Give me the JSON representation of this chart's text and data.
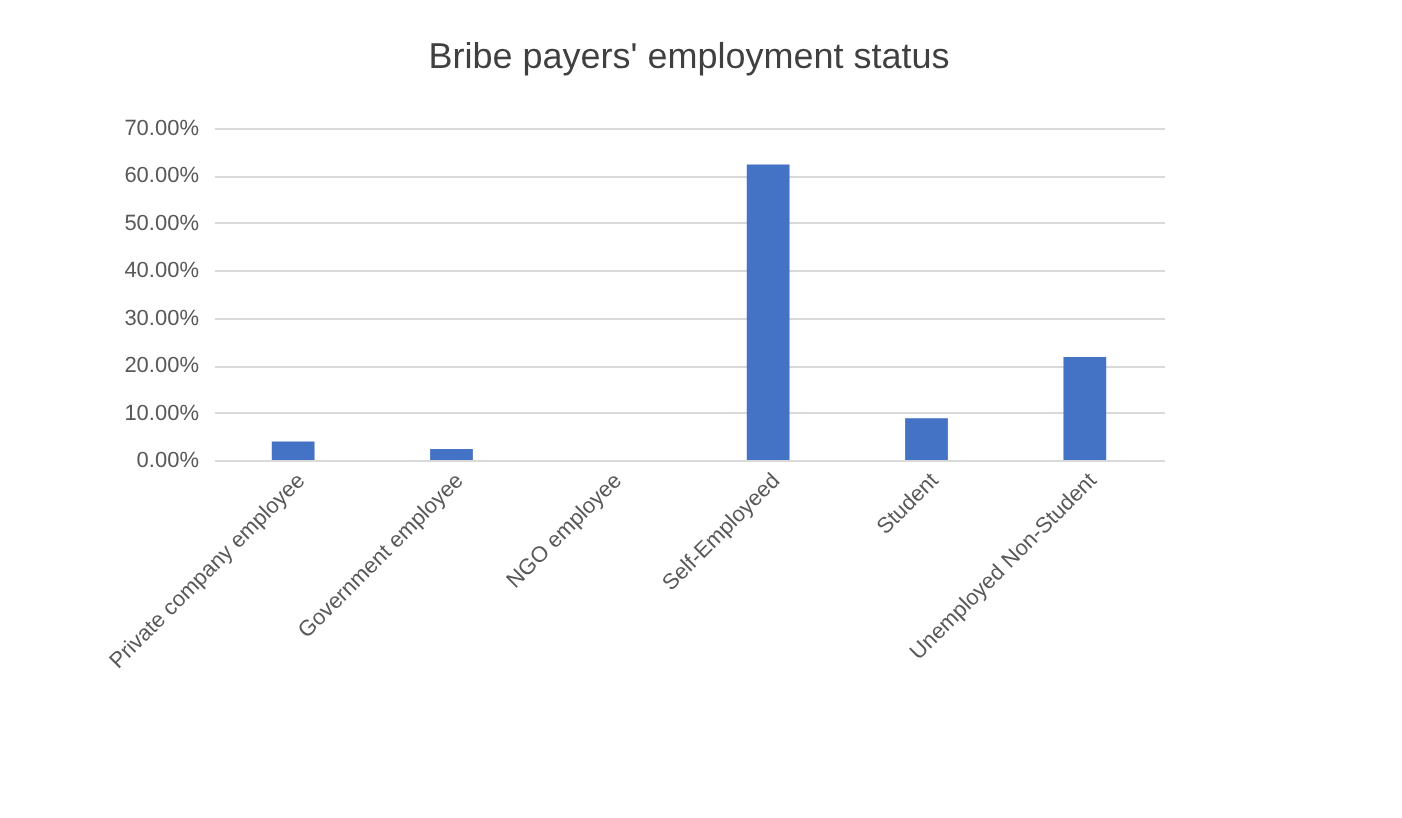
{
  "chart_data": {
    "type": "bar",
    "title": "Bribe payers' employment status",
    "categories": [
      "Private company employee",
      "Government employee",
      "NGO employee",
      "Self-Employeed",
      "Student",
      "Unemployed Non-Student"
    ],
    "values": [
      3.9,
      2.3,
      0,
      62.3,
      8.8,
      21.7
    ],
    "color": "#4472c4",
    "ylim": [
      0,
      70
    ],
    "yticks": [
      {
        "value": 0,
        "label": "0.00%"
      },
      {
        "value": 10,
        "label": "10.00%"
      },
      {
        "value": 20,
        "label": "20.00%"
      },
      {
        "value": 30,
        "label": "30.00%"
      },
      {
        "value": 40,
        "label": "40.00%"
      },
      {
        "value": 50,
        "label": "50.00%"
      },
      {
        "value": 60,
        "label": "60.00%"
      },
      {
        "value": 70,
        "label": "70.00%"
      }
    ],
    "grid": "y"
  }
}
